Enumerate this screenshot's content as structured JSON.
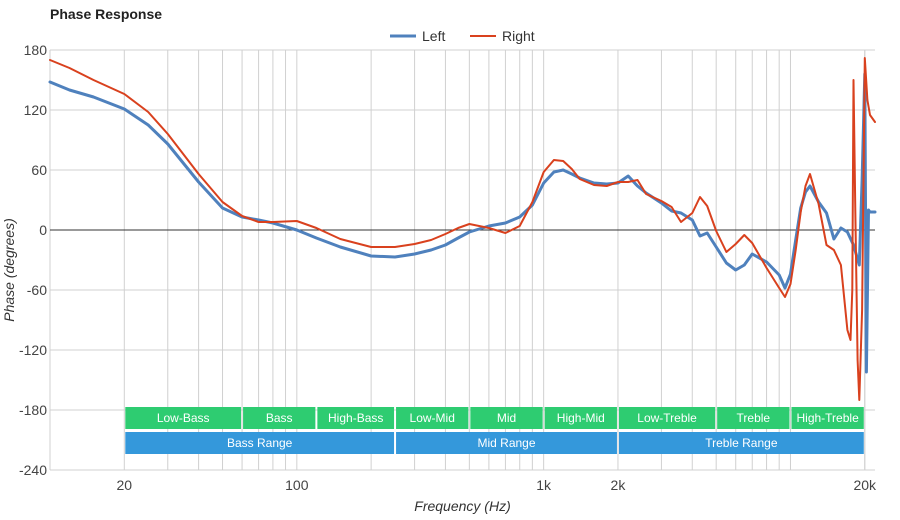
{
  "chart_data": {
    "type": "line",
    "title": "Phase Response",
    "xlabel": "Frequency (Hz)",
    "ylabel": "Phase (degrees)",
    "xscale": "log",
    "xlim": [
      10,
      22000
    ],
    "ylim": [
      -240,
      180
    ],
    "x_ticks": [
      {
        "value": 20,
        "label": "20"
      },
      {
        "value": 100,
        "label": "100"
      },
      {
        "value": 1000,
        "label": "1k"
      },
      {
        "value": 2000,
        "label": "2k"
      },
      {
        "value": 20000,
        "label": "20k"
      }
    ],
    "y_ticks": [
      180,
      120,
      60,
      0,
      -60,
      -120,
      -180,
      -240
    ],
    "grid": true,
    "legend": "top-center",
    "series": [
      {
        "name": "Left",
        "color": "#4f81bd",
        "points": [
          [
            10,
            148
          ],
          [
            12,
            140
          ],
          [
            15,
            133
          ],
          [
            20,
            121
          ],
          [
            25,
            105
          ],
          [
            30,
            86
          ],
          [
            40,
            48
          ],
          [
            50,
            22
          ],
          [
            60,
            13
          ],
          [
            70,
            10
          ],
          [
            80,
            7
          ],
          [
            100,
            0
          ],
          [
            120,
            -8
          ],
          [
            150,
            -17
          ],
          [
            200,
            -26
          ],
          [
            250,
            -27
          ],
          [
            300,
            -24
          ],
          [
            350,
            -20
          ],
          [
            400,
            -15
          ],
          [
            450,
            -8
          ],
          [
            500,
            -2
          ],
          [
            600,
            4
          ],
          [
            700,
            7
          ],
          [
            800,
            13
          ],
          [
            900,
            25
          ],
          [
            1000,
            47
          ],
          [
            1100,
            58
          ],
          [
            1200,
            60
          ],
          [
            1300,
            56
          ],
          [
            1400,
            52
          ],
          [
            1600,
            47
          ],
          [
            1800,
            46
          ],
          [
            2000,
            47
          ],
          [
            2200,
            54
          ],
          [
            2400,
            44
          ],
          [
            2600,
            37
          ],
          [
            3000,
            27
          ],
          [
            3300,
            19
          ],
          [
            3600,
            17
          ],
          [
            4000,
            10
          ],
          [
            4300,
            -6
          ],
          [
            4600,
            -3
          ],
          [
            5000,
            -17
          ],
          [
            5500,
            -33
          ],
          [
            6000,
            -40
          ],
          [
            6500,
            -35
          ],
          [
            7000,
            -24
          ],
          [
            8000,
            -32
          ],
          [
            9000,
            -45
          ],
          [
            9500,
            -58
          ],
          [
            10000,
            -44
          ],
          [
            10500,
            -10
          ],
          [
            11000,
            22
          ],
          [
            11500,
            38
          ],
          [
            12000,
            44
          ],
          [
            13000,
            28
          ],
          [
            14000,
            17
          ],
          [
            15000,
            -9
          ],
          [
            16000,
            2
          ],
          [
            17000,
            -2
          ],
          [
            18000,
            -15
          ],
          [
            19000,
            -35
          ],
          [
            19500,
            50
          ],
          [
            20000,
            156
          ],
          [
            20300,
            -142
          ],
          [
            20700,
            20
          ],
          [
            21000,
            18
          ],
          [
            22000,
            18
          ]
        ]
      },
      {
        "name": "Right",
        "color": "#d9411e",
        "points": [
          [
            10,
            170
          ],
          [
            12,
            162
          ],
          [
            15,
            150
          ],
          [
            20,
            136
          ],
          [
            25,
            118
          ],
          [
            30,
            96
          ],
          [
            40,
            56
          ],
          [
            50,
            28
          ],
          [
            60,
            14
          ],
          [
            70,
            8
          ],
          [
            80,
            8
          ],
          [
            100,
            9
          ],
          [
            120,
            2
          ],
          [
            150,
            -9
          ],
          [
            200,
            -17
          ],
          [
            250,
            -17
          ],
          [
            300,
            -14
          ],
          [
            350,
            -10
          ],
          [
            400,
            -4
          ],
          [
            450,
            2
          ],
          [
            500,
            6
          ],
          [
            600,
            2
          ],
          [
            700,
            -3
          ],
          [
            800,
            4
          ],
          [
            900,
            28
          ],
          [
            1000,
            58
          ],
          [
            1100,
            70
          ],
          [
            1200,
            69
          ],
          [
            1300,
            61
          ],
          [
            1400,
            51
          ],
          [
            1600,
            45
          ],
          [
            1800,
            44
          ],
          [
            2000,
            48
          ],
          [
            2200,
            48
          ],
          [
            2400,
            50
          ],
          [
            2600,
            36
          ],
          [
            3000,
            29
          ],
          [
            3300,
            23
          ],
          [
            3600,
            8
          ],
          [
            4000,
            17
          ],
          [
            4300,
            33
          ],
          [
            4600,
            24
          ],
          [
            5000,
            -1
          ],
          [
            5500,
            -22
          ],
          [
            6000,
            -14
          ],
          [
            6500,
            -5
          ],
          [
            7000,
            -13
          ],
          [
            8000,
            -38
          ],
          [
            9000,
            -58
          ],
          [
            9500,
            -67
          ],
          [
            10000,
            -54
          ],
          [
            10500,
            -20
          ],
          [
            11000,
            18
          ],
          [
            11500,
            44
          ],
          [
            12000,
            56
          ],
          [
            13000,
            26
          ],
          [
            14000,
            -15
          ],
          [
            15000,
            -20
          ],
          [
            16000,
            -35
          ],
          [
            17000,
            -100
          ],
          [
            17500,
            -110
          ],
          [
            17800,
            -60
          ],
          [
            18000,
            150
          ],
          [
            18300,
            20
          ],
          [
            18700,
            -130
          ],
          [
            19000,
            -170
          ],
          [
            19500,
            -80
          ],
          [
            20000,
            172
          ],
          [
            20500,
            130
          ],
          [
            21000,
            115
          ],
          [
            22000,
            108
          ]
        ]
      }
    ],
    "bands": [
      {
        "row": 0,
        "label": "Low-Bass",
        "from": 20,
        "to": 60
      },
      {
        "row": 0,
        "label": "Bass",
        "from": 60,
        "to": 120
      },
      {
        "row": 0,
        "label": "High-Bass",
        "from": 120,
        "to": 250
      },
      {
        "row": 0,
        "label": "Low-Mid",
        "from": 250,
        "to": 500
      },
      {
        "row": 0,
        "label": "Mid",
        "from": 500,
        "to": 1000
      },
      {
        "row": 0,
        "label": "High-Mid",
        "from": 1000,
        "to": 2000
      },
      {
        "row": 0,
        "label": "Low-Treble",
        "from": 2000,
        "to": 5000
      },
      {
        "row": 0,
        "label": "Treble",
        "from": 5000,
        "to": 10000
      },
      {
        "row": 0,
        "label": "High-Treble",
        "from": 10000,
        "to": 20000
      },
      {
        "row": 1,
        "label": "Bass Range",
        "from": 20,
        "to": 250
      },
      {
        "row": 1,
        "label": "Mid Range",
        "from": 250,
        "to": 2000
      },
      {
        "row": 1,
        "label": "Treble Range",
        "from": 2000,
        "to": 20000
      }
    ],
    "band_colors": [
      "#2ecc71",
      "#3498db"
    ]
  }
}
